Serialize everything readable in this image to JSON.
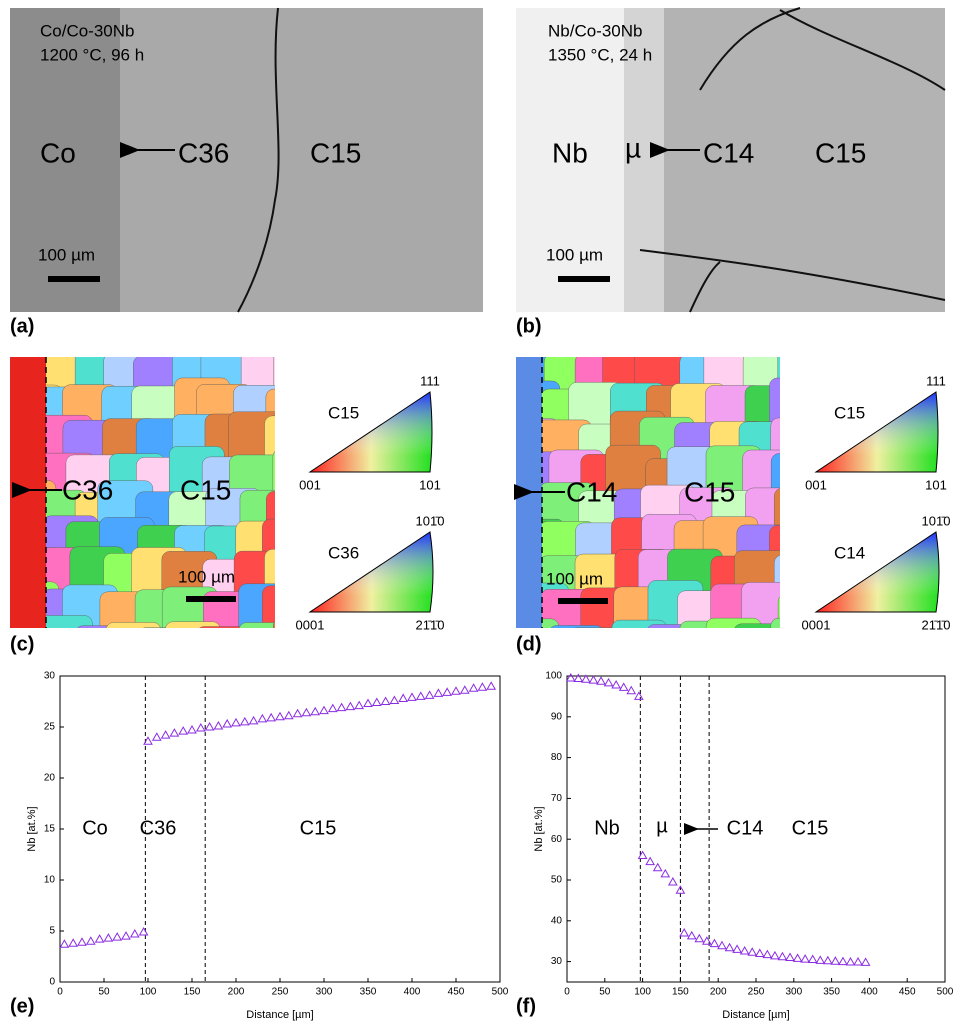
{
  "panels": [
    {
      "label": "(a)",
      "texts": [
        "Co/Co-30Nb",
        "1200 °C, 96 h"
      ],
      "phases": [
        "Co",
        "C36",
        "C15"
      ],
      "scale_bar": "100 µm"
    },
    {
      "label": "(b)",
      "texts": [
        "Nb/Co-30Nb",
        "1350 °C, 24 h"
      ],
      "phases": [
        "Nb",
        "µ",
        "C14",
        "C15"
      ],
      "scale_bar": "100 µm"
    },
    {
      "label": "(c)",
      "phases": [
        "C36",
        "C15"
      ],
      "scale_bar": "100 µm",
      "ipf": [
        {
          "phase": "C15",
          "corners": [
            "111",
            "001",
            "101"
          ]
        },
        {
          "phase": "C36",
          "corners": [
            "101̄0",
            "0001",
            "21̄1̄0"
          ]
        }
      ]
    },
    {
      "label": "(d)",
      "phases": [
        "C14",
        "C15"
      ],
      "scale_bar": "100 µm",
      "ipf": [
        {
          "phase": "C15",
          "corners": [
            "111",
            "001",
            "101"
          ]
        },
        {
          "phase": "C14",
          "corners": [
            "101̄0",
            "0001",
            "21̄1̄0"
          ]
        }
      ]
    }
  ],
  "chart_data": [
    {
      "type": "scatter",
      "label": "(e)",
      "x_label": "Distance [µm]",
      "y_label": "Nb [at.%]",
      "color": "#8a2be2",
      "xlim": [
        0,
        500
      ],
      "xticks": [
        0,
        50,
        100,
        150,
        200,
        250,
        300,
        350,
        400,
        450,
        500
      ],
      "ylim": [
        0,
        30
      ],
      "yticks": [
        0,
        5,
        10,
        15,
        20,
        25,
        30
      ],
      "boundaries": [
        97,
        165
      ],
      "annotations": [
        "Co",
        "C36",
        "C15"
      ],
      "x": [
        5,
        15,
        25,
        35,
        45,
        55,
        65,
        75,
        85,
        95,
        100,
        110,
        120,
        130,
        140,
        150,
        160,
        170,
        180,
        190,
        200,
        210,
        220,
        230,
        240,
        250,
        260,
        270,
        280,
        290,
        300,
        310,
        320,
        330,
        340,
        350,
        360,
        370,
        380,
        390,
        400,
        410,
        420,
        430,
        440,
        450,
        460,
        470,
        480,
        490
      ],
      "values": [
        3.7,
        3.8,
        3.9,
        4.0,
        4.2,
        4.3,
        4.4,
        4.5,
        4.7,
        4.9,
        23.6,
        24.0,
        24.2,
        24.4,
        24.6,
        24.7,
        24.9,
        25.0,
        25.1,
        25.3,
        25.4,
        25.5,
        25.6,
        25.8,
        25.9,
        26.0,
        26.1,
        26.3,
        26.4,
        26.5,
        26.6,
        26.8,
        26.9,
        27.0,
        27.1,
        27.3,
        27.4,
        27.5,
        27.6,
        27.8,
        27.9,
        28.0,
        28.1,
        28.3,
        28.4,
        28.5,
        28.6,
        28.8,
        28.9,
        29.0
      ]
    },
    {
      "type": "scatter",
      "label": "(f)",
      "x_label": "Distance [µm]",
      "y_label": "Nb [at.%]",
      "color": "#8a2be2",
      "xlim": [
        0,
        500
      ],
      "xticks": [
        0,
        50,
        100,
        150,
        200,
        250,
        300,
        350,
        400,
        450,
        500
      ],
      "ylim": [
        25,
        100
      ],
      "yticks": [
        30,
        40,
        50,
        60,
        70,
        80,
        90,
        100
      ],
      "boundaries": [
        97,
        150,
        188
      ],
      "annotations": [
        "Nb",
        "µ",
        "C14",
        "C15"
      ],
      "x": [
        5,
        15,
        25,
        35,
        45,
        55,
        65,
        75,
        85,
        95,
        100,
        110,
        120,
        130,
        140,
        150,
        155,
        165,
        175,
        185,
        195,
        205,
        215,
        225,
        235,
        245,
        255,
        265,
        275,
        285,
        295,
        305,
        315,
        325,
        335,
        345,
        355,
        365,
        375,
        385,
        395
      ],
      "values": [
        99.5,
        99.4,
        99.2,
        99.0,
        98.7,
        98.3,
        97.8,
        97.2,
        96.4,
        95.0,
        56,
        54.5,
        53,
        51.5,
        49.5,
        47.5,
        37.0,
        36.3,
        35.6,
        35.0,
        34.4,
        33.9,
        33.4,
        33.0,
        32.6,
        32.3,
        32.0,
        31.7,
        31.4,
        31.2,
        31.0,
        30.8,
        30.6,
        30.5,
        30.3,
        30.2,
        30.1,
        30.0,
        29.9,
        29.9,
        29.8
      ]
    }
  ]
}
